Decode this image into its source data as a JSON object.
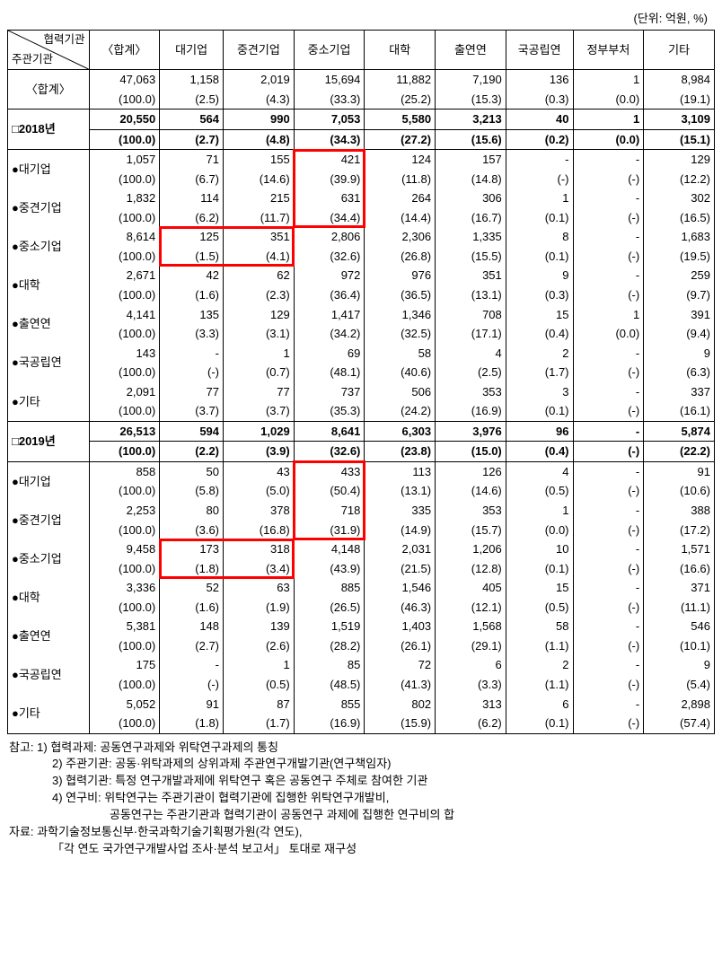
{
  "unit_text": "(단위: 억원, %)",
  "diag_header": {
    "top": "협력기관",
    "bottom": "주관기관"
  },
  "columns": [
    "〈합계〉",
    "대기업",
    "중견기업",
    "중소기업",
    "대학",
    "출연연",
    "국공립연",
    "정부부처",
    "기타"
  ],
  "col_widths_pct": [
    11.5,
    10,
    9,
    10,
    10,
    10,
    10,
    9.5,
    10,
    10
  ],
  "rows": [
    {
      "label": "〈합계〉",
      "kind": "total",
      "v": [
        "47,063",
        "1,158",
        "2,019",
        "15,694",
        "11,882",
        "7,190",
        "136",
        "1",
        "8,984"
      ],
      "p": [
        "(100.0)",
        "(2.5)",
        "(4.3)",
        "(33.3)",
        "(25.2)",
        "(15.3)",
        "(0.3)",
        "(0.0)",
        "(19.1)"
      ]
    },
    {
      "label": "□2018년",
      "kind": "year",
      "v": [
        "20,550",
        "564",
        "990",
        "7,053",
        "5,580",
        "3,213",
        "40",
        "1",
        "3,109"
      ],
      "p": [
        "(100.0)",
        "(2.7)",
        "(4.8)",
        "(34.3)",
        "(27.2)",
        "(15.6)",
        "(0.2)",
        "(0.0)",
        "(15.1)"
      ]
    },
    {
      "label": "●대기업",
      "v": [
        "1,057",
        "71",
        "155",
        "421",
        "124",
        "157",
        "-",
        "-",
        "129"
      ],
      "p": [
        "(100.0)",
        "(6.7)",
        "(14.6)",
        "(39.9)",
        "(11.8)",
        "(14.8)",
        "(-)",
        "(-)",
        "(12.2)"
      ]
    },
    {
      "label": "●중견기업",
      "v": [
        "1,832",
        "114",
        "215",
        "631",
        "264",
        "306",
        "1",
        "-",
        "302"
      ],
      "p": [
        "(100.0)",
        "(6.2)",
        "(11.7)",
        "(34.4)",
        "(14.4)",
        "(16.7)",
        "(0.1)",
        "(-)",
        "(16.5)"
      ]
    },
    {
      "label": "●중소기업",
      "v": [
        "8,614",
        "125",
        "351",
        "2,806",
        "2,306",
        "1,335",
        "8",
        "-",
        "1,683"
      ],
      "p": [
        "(100.0)",
        "(1.5)",
        "(4.1)",
        "(32.6)",
        "(26.8)",
        "(15.5)",
        "(0.1)",
        "(-)",
        "(19.5)"
      ]
    },
    {
      "label": "●대학",
      "v": [
        "2,671",
        "42",
        "62",
        "972",
        "976",
        "351",
        "9",
        "-",
        "259"
      ],
      "p": [
        "(100.0)",
        "(1.6)",
        "(2.3)",
        "(36.4)",
        "(36.5)",
        "(13.1)",
        "(0.3)",
        "(-)",
        "(9.7)"
      ]
    },
    {
      "label": "●출연연",
      "v": [
        "4,141",
        "135",
        "129",
        "1,417",
        "1,346",
        "708",
        "15",
        "1",
        "391"
      ],
      "p": [
        "(100.0)",
        "(3.3)",
        "(3.1)",
        "(34.2)",
        "(32.5)",
        "(17.1)",
        "(0.4)",
        "(0.0)",
        "(9.4)"
      ]
    },
    {
      "label": "●국공립연",
      "v": [
        "143",
        "-",
        "1",
        "69",
        "58",
        "4",
        "2",
        "-",
        "9"
      ],
      "p": [
        "(100.0)",
        "(-)",
        "(0.7)",
        "(48.1)",
        "(40.6)",
        "(2.5)",
        "(1.7)",
        "(-)",
        "(6.3)"
      ]
    },
    {
      "label": "●기타",
      "v": [
        "2,091",
        "77",
        "77",
        "737",
        "506",
        "353",
        "3",
        "-",
        "337"
      ],
      "p": [
        "(100.0)",
        "(3.7)",
        "(3.7)",
        "(35.3)",
        "(24.2)",
        "(16.9)",
        "(0.1)",
        "(-)",
        "(16.1)"
      ]
    },
    {
      "label": "□2019년",
      "kind": "year",
      "v": [
        "26,513",
        "594",
        "1,029",
        "8,641",
        "6,303",
        "3,976",
        "96",
        "-",
        "5,874"
      ],
      "p": [
        "(100.0)",
        "(2.2)",
        "(3.9)",
        "(32.6)",
        "(23.8)",
        "(15.0)",
        "(0.4)",
        "(-)",
        "(22.2)"
      ]
    },
    {
      "label": "●대기업",
      "v": [
        "858",
        "50",
        "43",
        "433",
        "113",
        "126",
        "4",
        "-",
        "91"
      ],
      "p": [
        "(100.0)",
        "(5.8)",
        "(5.0)",
        "(50.4)",
        "(13.1)",
        "(14.6)",
        "(0.5)",
        "(-)",
        "(10.6)"
      ]
    },
    {
      "label": "●중견기업",
      "v": [
        "2,253",
        "80",
        "378",
        "718",
        "335",
        "353",
        "1",
        "-",
        "388"
      ],
      "p": [
        "(100.0)",
        "(3.6)",
        "(16.8)",
        "(31.9)",
        "(14.9)",
        "(15.7)",
        "(0.0)",
        "(-)",
        "(17.2)"
      ]
    },
    {
      "label": "●중소기업",
      "v": [
        "9,458",
        "173",
        "318",
        "4,148",
        "2,031",
        "1,206",
        "10",
        "-",
        "1,571"
      ],
      "p": [
        "(100.0)",
        "(1.8)",
        "(3.4)",
        "(43.9)",
        "(21.5)",
        "(12.8)",
        "(0.1)",
        "(-)",
        "(16.6)"
      ]
    },
    {
      "label": "●대학",
      "v": [
        "3,336",
        "52",
        "63",
        "885",
        "1,546",
        "405",
        "15",
        "-",
        "371"
      ],
      "p": [
        "(100.0)",
        "(1.6)",
        "(1.9)",
        "(26.5)",
        "(46.3)",
        "(12.1)",
        "(0.5)",
        "(-)",
        "(11.1)"
      ]
    },
    {
      "label": "●출연연",
      "v": [
        "5,381",
        "148",
        "139",
        "1,519",
        "1,403",
        "1,568",
        "58",
        "-",
        "546"
      ],
      "p": [
        "(100.0)",
        "(2.7)",
        "(2.6)",
        "(28.2)",
        "(26.1)",
        "(29.1)",
        "(1.1)",
        "(-)",
        "(10.1)"
      ]
    },
    {
      "label": "●국공립연",
      "v": [
        "175",
        "-",
        "1",
        "85",
        "72",
        "6",
        "2",
        "-",
        "9"
      ],
      "p": [
        "(100.0)",
        "(-)",
        "(0.5)",
        "(48.5)",
        "(41.3)",
        "(3.3)",
        "(1.1)",
        "(-)",
        "(5.4)"
      ]
    },
    {
      "label": "●기타",
      "v": [
        "5,052",
        "91",
        "87",
        "855",
        "802",
        "313",
        "6",
        "-",
        "2,898"
      ],
      "p": [
        "(100.0)",
        "(1.8)",
        "(1.7)",
        "(16.9)",
        "(15.9)",
        "(6.2)",
        "(0.1)",
        "(-)",
        "(57.4)"
      ]
    }
  ],
  "notes": {
    "label": "참고:",
    "items": [
      "1) 협력과제: 공동연구과제와 위탁연구과제의 통칭",
      "2) 주관기관: 공동·위탁과제의 상위과제 주관연구개발기관(연구책임자)",
      "3) 협력기관: 특정 연구개발과제에 위탁연구 혹은 공동연구 주체로 참여한 기관",
      "4) 연구비: 위탁연구는 주관기관이 협력기관에 집행한 위탁연구개발비,",
      "공동연구는 주관기관과 협력기관이 공동연구 과제에 집행한 연구비의 합"
    ],
    "src_label": "자료:",
    "src_items": [
      "과학기술정보통신부·한국과학기술기획평가원(각 연도),",
      "「각 연도 국가연구개발사업 조사·분석 보고서」 토대로 재구성"
    ]
  },
  "highlight_color": "#ff0000",
  "highlights": [
    {
      "row_start": 2,
      "row_end": 3,
      "col_start": 4,
      "col_end": 4
    },
    {
      "row_start": 4,
      "row_end": 4,
      "col_start": 2,
      "col_end": 3
    },
    {
      "row_start": 10,
      "row_end": 11,
      "col_start": 4,
      "col_end": 4
    },
    {
      "row_start": 12,
      "row_end": 12,
      "col_start": 2,
      "col_end": 3
    }
  ]
}
